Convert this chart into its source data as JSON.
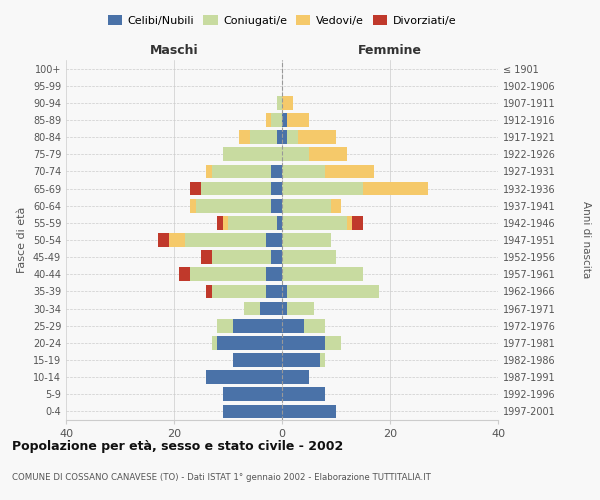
{
  "age_groups": [
    "0-4",
    "5-9",
    "10-14",
    "15-19",
    "20-24",
    "25-29",
    "30-34",
    "35-39",
    "40-44",
    "45-49",
    "50-54",
    "55-59",
    "60-64",
    "65-69",
    "70-74",
    "75-79",
    "80-84",
    "85-89",
    "90-94",
    "95-99",
    "100+"
  ],
  "birth_years": [
    "1997-2001",
    "1992-1996",
    "1987-1991",
    "1982-1986",
    "1977-1981",
    "1972-1976",
    "1967-1971",
    "1962-1966",
    "1957-1961",
    "1952-1956",
    "1947-1951",
    "1942-1946",
    "1937-1941",
    "1932-1936",
    "1927-1931",
    "1922-1926",
    "1917-1921",
    "1912-1916",
    "1907-1911",
    "1902-1906",
    "≤ 1901"
  ],
  "maschi": {
    "celibi": [
      11,
      11,
      14,
      9,
      12,
      9,
      4,
      3,
      3,
      2,
      3,
      1,
      2,
      2,
      2,
      0,
      1,
      0,
      0,
      0,
      0
    ],
    "coniugati": [
      0,
      0,
      0,
      0,
      1,
      3,
      3,
      10,
      14,
      11,
      15,
      9,
      14,
      13,
      11,
      11,
      5,
      2,
      1,
      0,
      0
    ],
    "vedovi": [
      0,
      0,
      0,
      0,
      0,
      0,
      0,
      0,
      0,
      0,
      3,
      1,
      1,
      0,
      1,
      0,
      2,
      1,
      0,
      0,
      0
    ],
    "divorziati": [
      0,
      0,
      0,
      0,
      0,
      0,
      0,
      1,
      2,
      2,
      2,
      1,
      0,
      2,
      0,
      0,
      0,
      0,
      0,
      0,
      0
    ]
  },
  "femmine": {
    "nubili": [
      10,
      8,
      5,
      7,
      8,
      4,
      1,
      1,
      0,
      0,
      0,
      0,
      0,
      0,
      0,
      0,
      1,
      1,
      0,
      0,
      0
    ],
    "coniugate": [
      0,
      0,
      0,
      1,
      3,
      4,
      5,
      17,
      15,
      10,
      9,
      12,
      9,
      15,
      8,
      5,
      2,
      0,
      0,
      0,
      0
    ],
    "vedove": [
      0,
      0,
      0,
      0,
      0,
      0,
      0,
      0,
      0,
      0,
      0,
      1,
      2,
      12,
      9,
      7,
      7,
      4,
      2,
      0,
      0
    ],
    "divorziate": [
      0,
      0,
      0,
      0,
      0,
      0,
      0,
      0,
      0,
      0,
      0,
      2,
      0,
      0,
      0,
      0,
      0,
      0,
      0,
      0,
      0
    ]
  },
  "colors": {
    "celibi": "#4a72a8",
    "coniugati": "#c8dba0",
    "vedovi": "#f5c96a",
    "divorziati": "#c0392b"
  },
  "title": "Popolazione per età, sesso e stato civile - 2002",
  "subtitle": "COMUNE DI COSSANO CANAVESE (TO) - Dati ISTAT 1° gennaio 2002 - Elaborazione TUTTITALIA.IT",
  "xlabel_left": "Maschi",
  "xlabel_right": "Femmine",
  "ylabel_left": "Fasce di età",
  "ylabel_right": "Anni di nascita",
  "xlim": 40,
  "bg_color": "#f8f8f8",
  "grid_color": "#cccccc"
}
